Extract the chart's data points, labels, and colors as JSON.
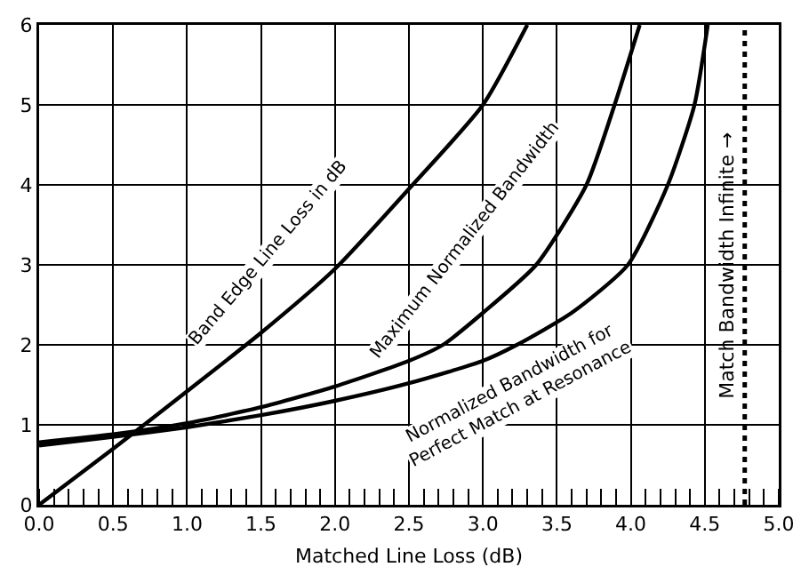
{
  "chart_data": {
    "type": "line",
    "xlabel": "Matched Line Loss (dB)",
    "xlim": [
      0,
      5
    ],
    "ylim": [
      0,
      6
    ],
    "xticks": [
      {
        "value": 0,
        "label": "0.0"
      },
      {
        "value": 0.5,
        "label": "0.5"
      },
      {
        "value": 1,
        "label": "1.0"
      },
      {
        "value": 1.5,
        "label": "1.5"
      },
      {
        "value": 2,
        "label": "2.0"
      },
      {
        "value": 2.5,
        "label": "2.5"
      },
      {
        "value": 3,
        "label": "3.0"
      },
      {
        "value": 3.5,
        "label": "3.5"
      },
      {
        "value": 4,
        "label": "4.0"
      },
      {
        "value": 4.5,
        "label": "4.5"
      },
      {
        "value": 5,
        "label": "5.0"
      }
    ],
    "yticks": [
      0,
      1,
      2,
      3,
      4,
      5,
      6
    ],
    "grid": true,
    "legend": false,
    "marker": "none",
    "line_style": "solid",
    "series": [
      {
        "name": "Band Edge Line Loss in dB",
        "color": "#000000",
        "x": [
          0,
          0.5,
          1.0,
          1.5,
          2.0,
          2.5,
          3.0,
          3.3
        ],
        "values": [
          0,
          0.7,
          1.42,
          2.15,
          2.95,
          3.95,
          5.0,
          6.0
        ]
      },
      {
        "name": "Maximum Normalized Bandwidth",
        "color": "#000000",
        "x": [
          0,
          0.5,
          1.0,
          1.5,
          2.0,
          2.5,
          2.73,
          3.0,
          3.36,
          3.7,
          3.89,
          4.06
        ],
        "values": [
          0.78,
          0.88,
          1.02,
          1.22,
          1.48,
          1.8,
          2.0,
          2.4,
          3.0,
          4.0,
          5.0,
          6.0
        ]
      },
      {
        "name": "Normalized Bandwidth for Perfect Match at Resonance",
        "color": "#000000",
        "x": [
          0,
          0.5,
          1.0,
          1.5,
          2.0,
          2.5,
          3.0,
          3.23,
          3.6,
          3.98,
          4.25,
          4.43,
          4.52
        ],
        "values": [
          0.74,
          0.85,
          0.97,
          1.12,
          1.3,
          1.52,
          1.8,
          2.0,
          2.4,
          3.0,
          4.0,
          5.0,
          6.0
        ]
      }
    ],
    "ref_lines": [
      {
        "axis": "x",
        "value": 4.77,
        "label": "Match Bandwidth Infinite →",
        "color": "#000000",
        "line_style": "dotted"
      }
    ]
  }
}
